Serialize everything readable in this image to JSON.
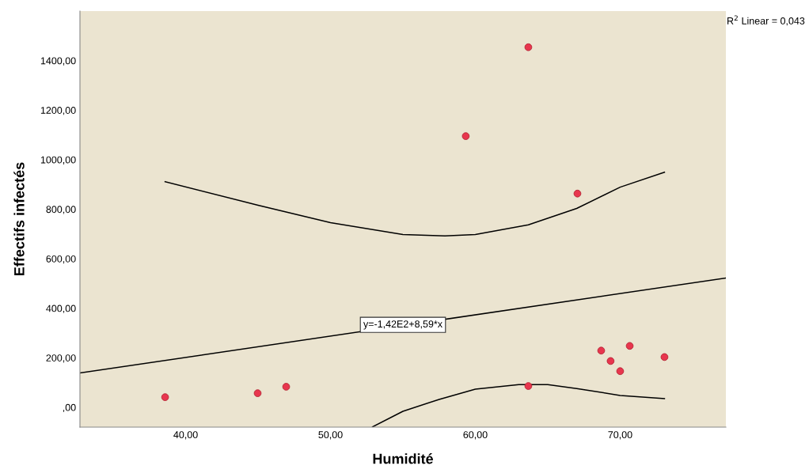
{
  "chart_data": {
    "type": "scatter",
    "xlabel": "Humidité",
    "ylabel": "Effectifs infectés",
    "xlim": [
      32.7,
      77.3
    ],
    "ylim": [
      -80,
      1600
    ],
    "xticks": [
      {
        "value": 40,
        "label": "40,00"
      },
      {
        "value": 50,
        "label": "50,00"
      },
      {
        "value": 60,
        "label": "60,00"
      },
      {
        "value": 70,
        "label": "70,00"
      }
    ],
    "yticks": [
      {
        "value": 0,
        "label": ",00"
      },
      {
        "value": 200,
        "label": "200,00"
      },
      {
        "value": 400,
        "label": "400,00"
      },
      {
        "value": 600,
        "label": "600,00"
      },
      {
        "value": 800,
        "label": "800,00"
      },
      {
        "value": 1000,
        "label": "1000,00"
      },
      {
        "value": 1200,
        "label": "1200,00"
      },
      {
        "value": 1400,
        "label": "1400,00"
      }
    ],
    "grid": false,
    "legend": false,
    "series": [
      {
        "type": "scatter",
        "marker": "circle",
        "color": "#e8364e",
        "x": [
          38.58,
          44.97,
          46.94,
          59.34,
          63.66,
          63.66,
          67.05,
          68.69,
          69.34,
          70.0,
          70.66,
          73.06
        ],
        "values": [
          41,
          57,
          83,
          1095,
          1454,
          86,
          863,
          229,
          187,
          146,
          248,
          203
        ]
      },
      {
        "type": "line",
        "color": "#000000",
        "x": [
          32.7,
          77.3
        ],
        "values": [
          139,
          522
        ]
      },
      {
        "type": "line",
        "color": "#000000",
        "x": [
          38.58,
          45,
          50,
          55,
          57.9,
          60,
          63.66,
          67,
          70,
          73.06
        ],
        "values": [
          911,
          816,
          746,
          698,
          692,
          698,
          737,
          803,
          889,
          949
        ]
      },
      {
        "type": "line",
        "color": "#000000",
        "x": [
          52.9,
          55,
          57.5,
          60,
          63,
          65,
          67,
          70,
          73.06
        ],
        "values": [
          -79,
          -16,
          32,
          73,
          92,
          92,
          76,
          48,
          35
        ]
      }
    ],
    "annotations": [
      {
        "text": "y=-1,42E2+8,59*x",
        "x": 55,
        "y": 333
      },
      "R$^{2}$ Linear = 0,043"
    ]
  }
}
